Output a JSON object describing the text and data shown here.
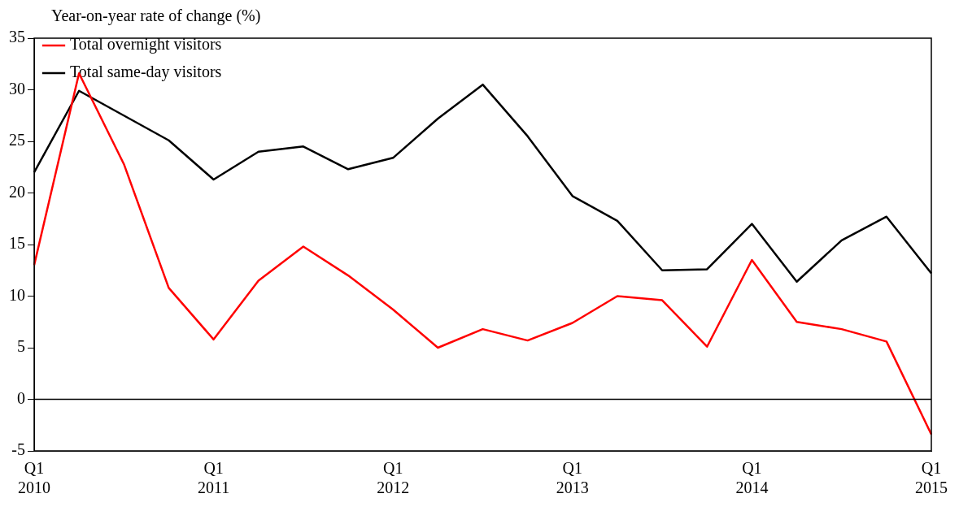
{
  "chart_data": {
    "type": "line",
    "ylabel": "Year-on-year rate of change (%)",
    "categories": [
      "Q1\n2010",
      null,
      null,
      null,
      "Q1\n2011",
      null,
      null,
      null,
      "Q1\n2012",
      null,
      null,
      null,
      "Q1\n2013",
      null,
      null,
      null,
      "Q1\n2014",
      null,
      null,
      null,
      "Q1\n2015"
    ],
    "series": [
      {
        "name": "Total overnight visitors",
        "color": "#ff0000",
        "values": [
          13.0,
          31.6,
          22.8,
          10.8,
          5.8,
          11.5,
          14.8,
          12.0,
          8.7,
          5.0,
          6.8,
          5.7,
          7.4,
          10.0,
          9.6,
          5.1,
          13.5,
          7.5,
          6.8,
          5.6,
          -3.4
        ]
      },
      {
        "name": "Total same-day visitors",
        "color": "#000000",
        "values": [
          22.0,
          29.9,
          27.5,
          25.1,
          21.3,
          24.0,
          24.5,
          22.3,
          23.4,
          27.2,
          30.5,
          25.5,
          19.7,
          17.3,
          12.5,
          12.6,
          17.0,
          11.4,
          15.4,
          17.7,
          12.2
        ]
      }
    ],
    "ylim": [
      -5,
      35
    ],
    "yticks": [
      -5,
      0,
      5,
      10,
      15,
      20,
      25,
      30,
      35
    ],
    "ref_lines": [
      {
        "axis": "y",
        "value": 0,
        "color": "#000000"
      }
    ],
    "legend": "top",
    "grid": false,
    "marker": "none",
    "line_style": "solid"
  }
}
